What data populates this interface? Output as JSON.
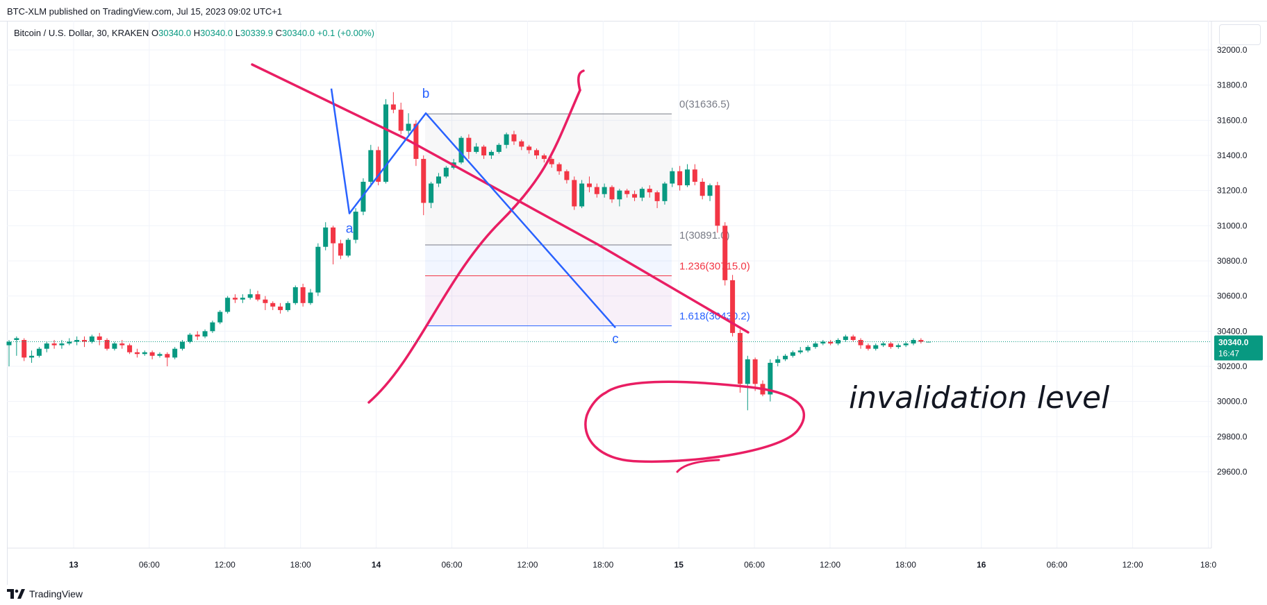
{
  "header": {
    "published": "BTC-XLM published on TradingView.com, Jul 15, 2023 09:02 UTC+1"
  },
  "legend": {
    "symbol": "Bitcoin / U.S. Dollar, 30, KRAKEN",
    "o_label": "O",
    "o_value": "30340.0",
    "h_label": "H",
    "h_value": "30340.0",
    "l_label": "L",
    "l_value": "30339.9",
    "c_label": "C",
    "c_value": "30340.0",
    "change": "+0.1 (+0.00%)"
  },
  "colors": {
    "up": "#089981",
    "down": "#f23645",
    "annotation": "#e91e63",
    "wave": "#2962ff",
    "grid": "#f0f3fa",
    "fib_zero": "#787b86",
    "fib_1236": "#f23645",
    "fib_1618": "#2962ff"
  },
  "chart_data": {
    "type": "candlestick",
    "interval_minutes": 30,
    "ylim": [
      29560,
      32120
    ],
    "y_ticks": [
      "32000.0",
      "31800.0",
      "31600.0",
      "31400.0",
      "31200.0",
      "31000.0",
      "30800.0",
      "30600.0",
      "30400.0",
      "30200.0",
      "30000.0",
      "29800.0",
      "29600.0"
    ],
    "x_ticks": [
      "13",
      "06:00",
      "12:00",
      "18:00",
      "14",
      "06:00",
      "12:00",
      "18:00",
      "15",
      "06:00",
      "12:00",
      "18:00",
      "16",
      "06:00",
      "12:00",
      "18:0"
    ],
    "last_price": "30340.0",
    "countdown": "16:47",
    "candles": [
      [
        30320,
        30340,
        30200,
        30350
      ],
      [
        30350,
        30360,
        30260,
        30370
      ],
      [
        30350,
        30250,
        30230,
        30360
      ],
      [
        30250,
        30260,
        30220,
        30290
      ],
      [
        30260,
        30300,
        30250,
        30310
      ],
      [
        30300,
        30330,
        30280,
        30340
      ],
      [
        30330,
        30320,
        30300,
        30350
      ],
      [
        30320,
        30330,
        30300,
        30350
      ],
      [
        30330,
        30340,
        30320,
        30360
      ],
      [
        30340,
        30350,
        30320,
        30370
      ],
      [
        30350,
        30340,
        30310,
        30370
      ],
      [
        30340,
        30370,
        30330,
        30380
      ],
      [
        30370,
        30350,
        30320,
        30390
      ],
      [
        30350,
        30300,
        30290,
        30360
      ],
      [
        30300,
        30330,
        30290,
        30340
      ],
      [
        30330,
        30320,
        30300,
        30350
      ],
      [
        30320,
        30280,
        30270,
        30330
      ],
      [
        30280,
        30270,
        30250,
        30300
      ],
      [
        30270,
        30280,
        30260,
        30290
      ],
      [
        30280,
        30260,
        30240,
        30290
      ],
      [
        30260,
        30270,
        30250,
        30280
      ],
      [
        30270,
        30250,
        30200,
        30280
      ],
      [
        30250,
        30300,
        30240,
        30310
      ],
      [
        30300,
        30340,
        30290,
        30350
      ],
      [
        30340,
        30380,
        30330,
        30390
      ],
      [
        30380,
        30370,
        30350,
        30400
      ],
      [
        30370,
        30400,
        30360,
        30410
      ],
      [
        30400,
        30450,
        30390,
        30460
      ],
      [
        30450,
        30510,
        30440,
        30520
      ],
      [
        30510,
        30590,
        30500,
        30600
      ],
      [
        30590,
        30580,
        30560,
        30610
      ],
      [
        30580,
        30590,
        30560,
        30610
      ],
      [
        30590,
        30610,
        30580,
        30640
      ],
      [
        30610,
        30580,
        30570,
        30630
      ],
      [
        30580,
        30560,
        30520,
        30600
      ],
      [
        30560,
        30540,
        30520,
        30570
      ],
      [
        30540,
        30520,
        30500,
        30560
      ],
      [
        30520,
        30560,
        30510,
        30570
      ],
      [
        30560,
        30650,
        30550,
        30660
      ],
      [
        30650,
        30560,
        30540,
        30670
      ],
      [
        30560,
        30620,
        30550,
        30640
      ],
      [
        30620,
        30880,
        30600,
        30900
      ],
      [
        30880,
        30990,
        30860,
        31020
      ],
      [
        30990,
        30900,
        30780,
        31000
      ],
      [
        30900,
        30830,
        30810,
        30920
      ],
      [
        30830,
        30920,
        30820,
        30930
      ],
      [
        30920,
        31080,
        30900,
        31100
      ],
      [
        31080,
        31250,
        31060,
        31270
      ],
      [
        31250,
        31430,
        31220,
        31460
      ],
      [
        31430,
        31250,
        31230,
        31450
      ],
      [
        31250,
        31690,
        31240,
        31720
      ],
      [
        31690,
        31660,
        31640,
        31760
      ],
      [
        31660,
        31540,
        31520,
        31700
      ],
      [
        31540,
        31580,
        31520,
        31640
      ],
      [
        31580,
        31380,
        31340,
        31600
      ],
      [
        31380,
        31130,
        31060,
        31400
      ],
      [
        31130,
        31240,
        31100,
        31250
      ],
      [
        31240,
        31280,
        31220,
        31300
      ],
      [
        31280,
        31330,
        31270,
        31340
      ],
      [
        31330,
        31360,
        31320,
        31380
      ],
      [
        31360,
        31500,
        31350,
        31510
      ],
      [
        31500,
        31420,
        31380,
        31520
      ],
      [
        31420,
        31450,
        31410,
        31470
      ],
      [
        31450,
        31400,
        31380,
        31460
      ],
      [
        31400,
        31420,
        31380,
        31430
      ],
      [
        31420,
        31460,
        31410,
        31470
      ],
      [
        31460,
        31520,
        31440,
        31530
      ],
      [
        31520,
        31480,
        31460,
        31540
      ],
      [
        31480,
        31450,
        31430,
        31490
      ],
      [
        31450,
        31430,
        31410,
        31460
      ],
      [
        31430,
        31400,
        31380,
        31440
      ],
      [
        31400,
        31380,
        31360,
        31410
      ],
      [
        31380,
        31350,
        31330,
        31390
      ],
      [
        31350,
        31310,
        31290,
        31360
      ],
      [
        31310,
        31260,
        31240,
        31320
      ],
      [
        31260,
        31110,
        31090,
        31280
      ],
      [
        31110,
        31240,
        31100,
        31260
      ],
      [
        31240,
        31220,
        31190,
        31280
      ],
      [
        31220,
        31180,
        31160,
        31240
      ],
      [
        31180,
        31220,
        31160,
        31240
      ],
      [
        31220,
        31150,
        31130,
        31230
      ],
      [
        31150,
        31200,
        31110,
        31210
      ],
      [
        31200,
        31180,
        31160,
        31210
      ],
      [
        31180,
        31160,
        31140,
        31200
      ],
      [
        31160,
        31210,
        31140,
        31220
      ],
      [
        31210,
        31190,
        31160,
        31230
      ],
      [
        31190,
        31140,
        31100,
        31200
      ],
      [
        31140,
        31240,
        31120,
        31250
      ],
      [
        31240,
        31310,
        31220,
        31330
      ],
      [
        31310,
        31230,
        31200,
        31340
      ],
      [
        31230,
        31320,
        31220,
        31350
      ],
      [
        31320,
        31250,
        31230,
        31350
      ],
      [
        31250,
        31170,
        31150,
        31270
      ],
      [
        31170,
        31230,
        31140,
        31240
      ],
      [
        31230,
        31000,
        30960,
        31250
      ],
      [
        31000,
        30690,
        30660,
        31020
      ],
      [
        30690,
        30390,
        30370,
        30720
      ],
      [
        30390,
        30100,
        30050,
        30410
      ],
      [
        30100,
        30240,
        29950,
        30260
      ],
      [
        30240,
        30100,
        30060,
        30250
      ],
      [
        30100,
        30040,
        30030,
        30120
      ],
      [
        30040,
        30220,
        30000,
        30240
      ],
      [
        30220,
        30240,
        30200,
        30260
      ],
      [
        30240,
        30260,
        30230,
        30270
      ],
      [
        30260,
        30280,
        30250,
        30290
      ],
      [
        30280,
        30290,
        30270,
        30310
      ],
      [
        30290,
        30310,
        30280,
        30320
      ],
      [
        30310,
        30330,
        30300,
        30340
      ],
      [
        30330,
        30340,
        30320,
        30350
      ],
      [
        30340,
        30330,
        30320,
        30350
      ],
      [
        30330,
        30350,
        30320,
        30360
      ],
      [
        30350,
        30370,
        30340,
        30380
      ],
      [
        30370,
        30350,
        30340,
        30380
      ],
      [
        30350,
        30320,
        30300,
        30360
      ],
      [
        30320,
        30300,
        30290,
        30330
      ],
      [
        30300,
        30320,
        30290,
        30330
      ],
      [
        30320,
        30330,
        30310,
        30340
      ],
      [
        30330,
        30310,
        30300,
        30340
      ],
      [
        30310,
        30320,
        30300,
        30330
      ],
      [
        30320,
        30330,
        30310,
        30340
      ],
      [
        30330,
        30350,
        30320,
        30360
      ],
      [
        30350,
        30340,
        30330,
        30360
      ],
      [
        30340,
        30340,
        30339.9,
        30340
      ]
    ],
    "fibonacci": {
      "levels": [
        {
          "ratio": "0",
          "price": 31636.5,
          "label": "0(31636.5)"
        },
        {
          "ratio": "1",
          "price": 30891.0,
          "label": "1(30891.0)"
        },
        {
          "ratio": "1.236",
          "price": 30715.0,
          "label": "1.236(30715.0)"
        },
        {
          "ratio": "1.618",
          "price": 30430.2,
          "label": "1.618(30430.2)"
        }
      ]
    },
    "waves": [
      {
        "label": "",
        "price": 31780
      },
      {
        "label": "a",
        "price": 31070
      },
      {
        "label": "b",
        "price": 31640
      },
      {
        "label": "c",
        "price": 30420
      }
    ],
    "annotation_text": "invalidation level"
  },
  "footer": {
    "brand": "TradingView"
  }
}
